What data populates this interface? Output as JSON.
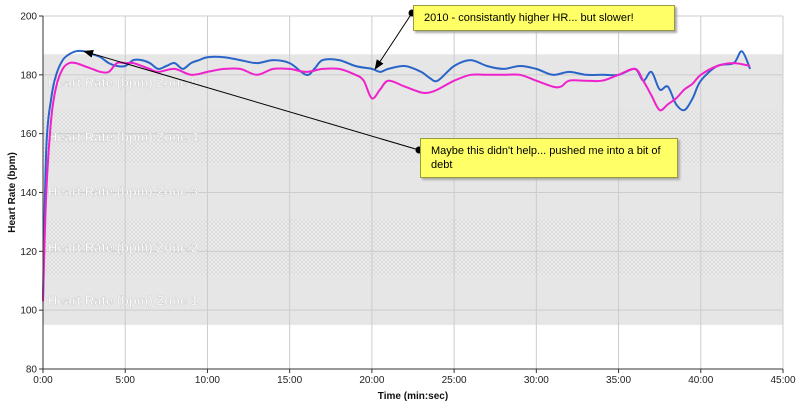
{
  "chart_data": {
    "type": "line",
    "xlabel": "Time (min:sec)",
    "ylabel": "Heart Rate (bpm)",
    "xlim": [
      0,
      45
    ],
    "ylim": [
      80,
      200
    ],
    "x_ticks": [
      0,
      5,
      10,
      15,
      20,
      25,
      30,
      35,
      40,
      45
    ],
    "x_tick_labels": [
      "0:00",
      "5:00",
      "10:00",
      "15:00",
      "20:00",
      "25:00",
      "30:00",
      "35:00",
      "40:00",
      "45:00"
    ],
    "y_ticks": [
      80,
      100,
      120,
      140,
      160,
      180,
      200
    ],
    "grid": true,
    "zones": [
      {
        "label": "Heart Rate (bpm) Zone 1",
        "range": [
          95,
          112
        ]
      },
      {
        "label": "Heart Rate (bpm) Zone 2",
        "range": [
          112,
          131
        ]
      },
      {
        "label": "Heart Rate (bpm) Zone 3",
        "range": [
          131,
          150
        ]
      },
      {
        "label": "Heart Rate (bpm) Zone 4",
        "range": [
          150,
          168
        ]
      },
      {
        "label": "Heart Rate (bpm) Zone 5",
        "range": [
          168,
          187
        ]
      }
    ],
    "series": [
      {
        "color": "#2a64c8",
        "x": [
          0,
          0.2,
          0.5,
          0.8,
          1.2,
          1.6,
          2.0,
          2.5,
          3.0,
          3.5,
          4.0,
          4.5,
          5.0,
          5.5,
          6.0,
          6.5,
          7.0,
          7.5,
          8.0,
          8.5,
          9.0,
          9.5,
          10.0,
          11.0,
          12.0,
          13.0,
          14.0,
          15.0,
          16.0,
          16.5,
          17.0,
          18.0,
          19.0,
          20.0,
          20.5,
          21.0,
          22.0,
          23.0,
          23.5,
          24.0,
          25.0,
          26.0,
          27.0,
          28.0,
          29.0,
          30.0,
          31.0,
          32.0,
          33.0,
          34.0,
          35.0,
          36.0,
          36.5,
          37.0,
          37.5,
          38.0,
          38.5,
          39.0,
          39.5,
          40.0,
          41.0,
          42.0,
          42.5,
          43.0
        ],
        "y": [
          104,
          155,
          172,
          180,
          185,
          187,
          188,
          188,
          187,
          186,
          184,
          183,
          183,
          185,
          185,
          184,
          182,
          183,
          184,
          182,
          184,
          185,
          186,
          186,
          185,
          184,
          185,
          184,
          180,
          182,
          185,
          185,
          183,
          182,
          181,
          182,
          183,
          181,
          179,
          178,
          183,
          185,
          183,
          182,
          183,
          182,
          180,
          181,
          180,
          180,
          180,
          182,
          178,
          181,
          175,
          176,
          170,
          168,
          172,
          178,
          183,
          184,
          188,
          182
        ]
      },
      {
        "color": "#ee22cc",
        "x": [
          0,
          0.2,
          0.5,
          0.8,
          1.2,
          1.6,
          2.0,
          2.5,
          3.0,
          3.5,
          4.0,
          4.5,
          5.0,
          5.5,
          6.0,
          6.5,
          7.0,
          8.0,
          9.0,
          10.0,
          11.0,
          12.0,
          13.0,
          14.0,
          15.0,
          16.0,
          17.0,
          18.0,
          19.0,
          19.5,
          20.0,
          20.5,
          21.0,
          22.0,
          23.0,
          23.5,
          24.0,
          25.0,
          26.0,
          27.0,
          28.0,
          29.0,
          30.0,
          31.0,
          31.5,
          32.0,
          33.0,
          34.0,
          35.0,
          36.0,
          36.5,
          37.0,
          37.5,
          38.0,
          38.5,
          39.0,
          39.5,
          40.0,
          41.0,
          42.0,
          43.0
        ],
        "y": [
          103,
          140,
          165,
          176,
          182,
          184,
          184,
          183,
          182,
          181,
          181,
          184,
          184,
          184,
          183,
          182,
          181,
          182,
          180,
          181,
          182,
          182,
          180,
          182,
          182,
          181,
          182,
          182,
          180,
          178,
          172,
          175,
          178,
          176,
          174,
          174,
          175,
          178,
          180,
          180,
          180,
          180,
          178,
          176,
          176,
          178,
          178,
          178,
          180,
          182,
          178,
          173,
          168,
          170,
          172,
          175,
          177,
          180,
          183,
          184,
          183
        ]
      }
    ],
    "annotations": [
      {
        "text": "2010 - consistantly higher HR... but slower!",
        "points_to": [
          20.2,
          182
        ]
      },
      {
        "text": "Maybe this didn't help... pushed me into a bit of debt",
        "points_to": [
          2.5,
          188
        ]
      }
    ]
  }
}
